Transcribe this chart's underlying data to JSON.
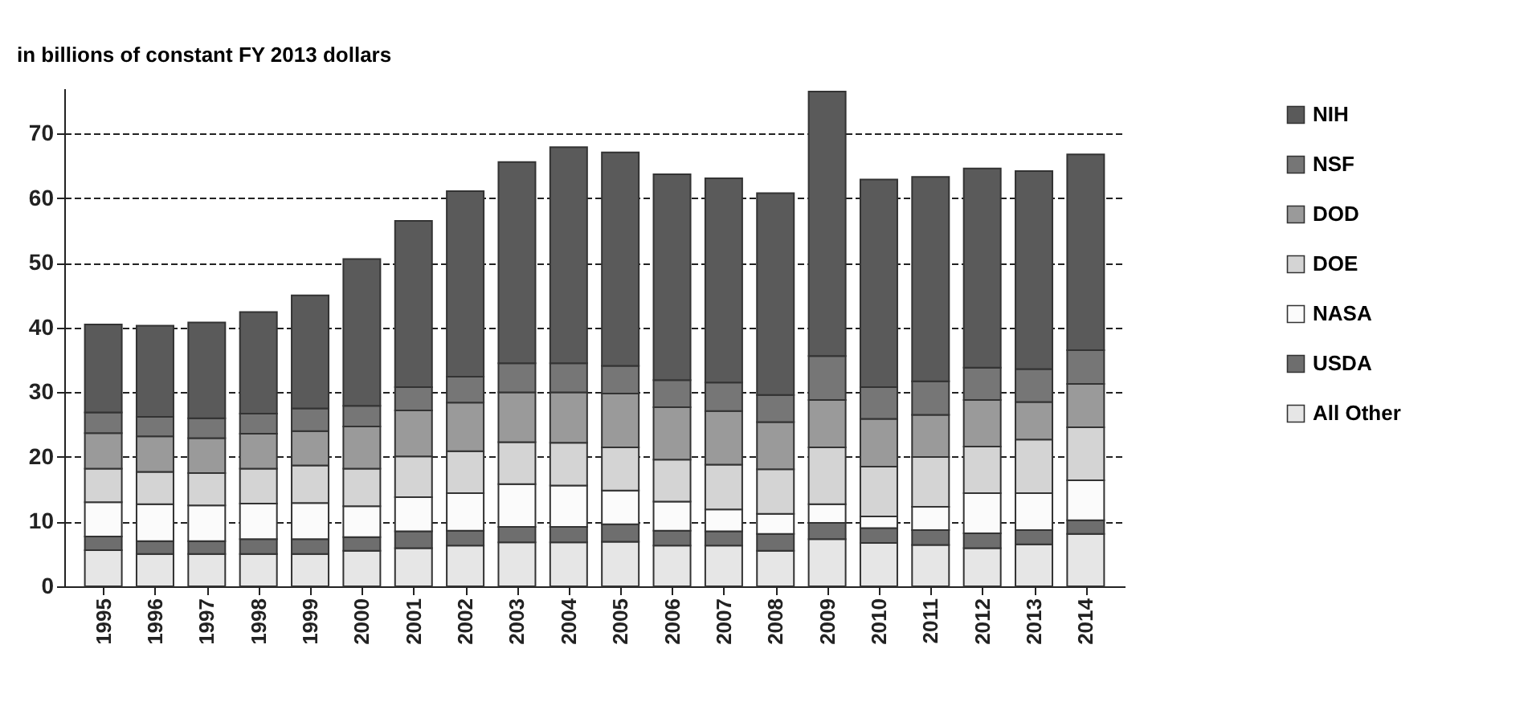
{
  "chart_data": {
    "type": "bar",
    "stacked": true,
    "ylabel": "in billions of constant FY 2013 dollars",
    "categories": [
      "1995",
      "1996",
      "1997",
      "1998",
      "1999",
      "2000",
      "2001",
      "2002",
      "2003",
      "2004",
      "2005",
      "2006",
      "2007",
      "2008",
      "2009",
      "2010",
      "2011",
      "2012",
      "2013",
      "2014"
    ],
    "series": [
      {
        "name": "All Other",
        "color": "#e6e6e6",
        "values": [
          5.6,
          5.0,
          5.0,
          5.0,
          5.0,
          5.5,
          5.9,
          6.3,
          6.8,
          6.8,
          6.9,
          6.3,
          6.3,
          5.5,
          7.3,
          6.7,
          6.4,
          5.9,
          6.5,
          8.1
        ]
      },
      {
        "name": "USDA",
        "color": "#6e6e6e",
        "values": [
          2.1,
          2.0,
          2.0,
          2.3,
          2.3,
          2.1,
          2.6,
          2.3,
          2.4,
          2.4,
          2.7,
          2.3,
          2.2,
          2.6,
          2.5,
          2.3,
          2.3,
          2.3,
          2.2,
          2.1
        ]
      },
      {
        "name": "NASA",
        "color": "#fbfbfb",
        "values": [
          5.3,
          5.7,
          5.5,
          5.5,
          5.6,
          4.8,
          5.3,
          5.8,
          6.6,
          6.4,
          5.2,
          4.5,
          3.4,
          3.1,
          2.9,
          1.8,
          3.6,
          6.2,
          5.7,
          6.2
        ]
      },
      {
        "name": "DOE",
        "color": "#d4d4d4",
        "values": [
          5.2,
          5.0,
          5.0,
          5.4,
          5.8,
          5.8,
          6.3,
          6.5,
          6.5,
          6.6,
          6.7,
          6.5,
          6.9,
          6.9,
          8.8,
          7.7,
          7.7,
          7.2,
          8.3,
          8.2
        ]
      },
      {
        "name": "DOD",
        "color": "#9a9a9a",
        "values": [
          5.5,
          5.5,
          5.4,
          5.4,
          5.3,
          6.5,
          7.1,
          7.5,
          7.7,
          7.8,
          8.3,
          8.1,
          8.3,
          7.3,
          7.3,
          7.4,
          6.5,
          7.2,
          5.8,
          6.7
        ]
      },
      {
        "name": "NSF",
        "color": "#767676",
        "values": [
          3.2,
          3.0,
          3.1,
          3.1,
          3.5,
          3.2,
          3.6,
          4.0,
          4.5,
          4.5,
          4.3,
          4.2,
          4.4,
          4.2,
          6.8,
          4.9,
          5.2,
          5.0,
          5.1,
          5.2
        ]
      },
      {
        "name": "NIH",
        "color": "#5a5a5a",
        "values": [
          13.6,
          14.1,
          14.8,
          15.7,
          17.5,
          22.7,
          25.7,
          28.7,
          31.1,
          33.4,
          33.0,
          31.8,
          31.6,
          31.2,
          40.9,
          32.1,
          31.6,
          30.8,
          30.6,
          30.3
        ]
      }
    ],
    "ylim": [
      0,
      77
    ],
    "yticks": [
      0,
      10,
      20,
      30,
      40,
      50,
      60,
      70
    ],
    "grid": "y",
    "legend": "right"
  }
}
